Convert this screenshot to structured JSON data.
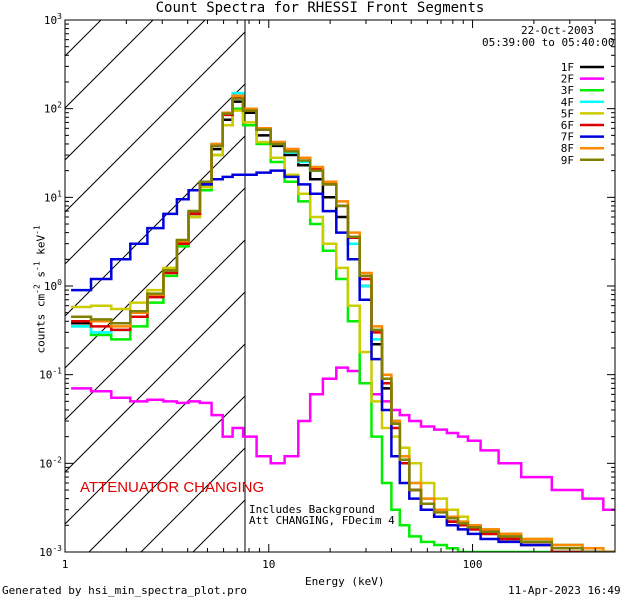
{
  "colors": {
    "1F": "#000000",
    "2F": "#ff00ff",
    "3F": "#00ee00",
    "4F": "#00ffff",
    "5F": "#cccc00",
    "6F": "#dd0000",
    "7F": "#0000dd",
    "8F": "#ff8800",
    "9F": "#808000",
    "annotation": "#dd0000",
    "axes": "#000000",
    "background": "#ffffff"
  },
  "footer": {
    "generated": "Generated by hsi_min_spectra_plot.pro",
    "timestamp": "11-Apr-2023 16:49"
  },
  "chart_data": {
    "type": "line",
    "title": "Count Spectra for RHESSI Front Segments",
    "date": "22-Oct-2003",
    "time_range": "05:39:00 to 05:40:00",
    "xlabel": "Energy (keV)",
    "ylabel_parts": {
      "base": "counts cm",
      "exp1": "-2",
      "mid1": " s",
      "exp2": "-1",
      "mid2": " keV",
      "exp3": "-1"
    },
    "xscale": "log",
    "yscale": "log",
    "xlim": [
      1,
      500
    ],
    "ylim": [
      0.001,
      1000
    ],
    "xticks": [
      {
        "value": 1,
        "label": "1"
      },
      {
        "value": 10,
        "label": "10"
      },
      {
        "value": 100,
        "label": "100"
      }
    ],
    "yticks": [
      {
        "value": 0.001,
        "base": "10",
        "exp": "-3"
      },
      {
        "value": 0.01,
        "base": "10",
        "exp": "-2"
      },
      {
        "value": 0.1,
        "base": "10",
        "exp": "-1"
      },
      {
        "value": 1,
        "base": "10",
        "exp": "0"
      },
      {
        "value": 10,
        "base": "10",
        "exp": "1"
      },
      {
        "value": 100,
        "base": "10",
        "exp": "2"
      },
      {
        "value": 1000,
        "base": "10",
        "exp": "3"
      }
    ],
    "attenuator_region": {
      "x_end": 6
    },
    "annotations": {
      "attenuator": "ATTENUATOR CHANGING",
      "background_line1": "Includes Background",
      "background_line2": "Att CHANGING, FDecim 4"
    },
    "series": [
      {
        "name": "1F",
        "color": "#000000",
        "x": [
          1.2,
          1.5,
          1.9,
          2.3,
          2.8,
          3.3,
          3.8,
          4.3,
          4.9,
          5.6,
          6.3,
          7.0,
          8.0,
          9.5,
          11,
          13,
          15,
          17,
          20,
          23,
          26,
          30,
          34,
          38,
          42,
          46,
          52,
          60,
          70,
          80,
          90,
          100,
          120,
          150,
          200,
          300,
          400,
          480
        ],
        "y": [
          0.38,
          0.4,
          0.38,
          0.5,
          0.8,
          1.5,
          3.2,
          6.5,
          14,
          35,
          75,
          120,
          90,
          50,
          38,
          30,
          23,
          16,
          10,
          6,
          3,
          1.0,
          0.22,
          0.07,
          0.03,
          0.012,
          0.005,
          0.003,
          0.0025,
          0.0022,
          0.002,
          0.0018,
          0.0016,
          0.0014,
          0.0012,
          0.001,
          0.001,
          0.001
        ]
      },
      {
        "name": "2F",
        "color": "#ff00ff",
        "x": [
          1.2,
          1.5,
          1.9,
          2.3,
          2.8,
          3.3,
          3.8,
          4.3,
          4.9,
          5.6,
          6.3,
          7.0,
          8.0,
          9.5,
          11,
          13,
          15,
          17,
          20,
          23,
          26,
          30,
          34,
          38,
          42,
          46,
          52,
          60,
          70,
          80,
          90,
          100,
          120,
          150,
          200,
          300,
          400,
          480
        ],
        "y": [
          0.07,
          0.065,
          0.055,
          0.05,
          0.052,
          0.05,
          0.048,
          0.05,
          0.048,
          0.035,
          0.02,
          0.025,
          0.02,
          0.012,
          0.01,
          0.012,
          0.03,
          0.06,
          0.09,
          0.12,
          0.11,
          0.08,
          0.06,
          0.05,
          0.04,
          0.035,
          0.03,
          0.026,
          0.024,
          0.022,
          0.02,
          0.018,
          0.014,
          0.01,
          0.007,
          0.005,
          0.004,
          0.003
        ]
      },
      {
        "name": "3F",
        "color": "#00ee00",
        "x": [
          1.2,
          1.5,
          1.9,
          2.3,
          2.8,
          3.3,
          3.8,
          4.3,
          4.9,
          5.6,
          6.3,
          7.0,
          8.0,
          9.5,
          11,
          13,
          15,
          17,
          20,
          23,
          26,
          30,
          34,
          38,
          42,
          46,
          52,
          60,
          70,
          80,
          90,
          100,
          120,
          150,
          200,
          300,
          400,
          480
        ],
        "y": [
          0.35,
          0.28,
          0.25,
          0.35,
          0.65,
          1.3,
          2.8,
          6,
          12,
          30,
          65,
          100,
          65,
          40,
          25,
          15,
          9,
          5,
          2.5,
          1.2,
          0.4,
          0.08,
          0.02,
          0.006,
          0.003,
          0.002,
          0.0015,
          0.0013,
          0.0012,
          0.0011,
          0.001,
          0.001,
          0.001,
          0.001,
          0.001,
          0.001,
          0.001,
          0.001
        ]
      },
      {
        "name": "4F",
        "color": "#00ffff",
        "x": [
          1.2,
          1.5,
          1.9,
          2.3,
          2.8,
          3.3,
          3.8,
          4.3,
          4.9,
          5.6,
          6.3,
          7.0,
          8.0,
          9.5,
          11,
          13,
          15,
          17,
          20,
          23,
          26,
          30,
          34,
          38,
          42,
          46,
          52,
          60,
          70,
          80,
          90,
          100,
          120,
          150,
          200,
          300,
          400,
          480
        ],
        "y": [
          0.35,
          0.3,
          0.32,
          0.45,
          0.75,
          1.5,
          3.1,
          7,
          15,
          40,
          90,
          150,
          100,
          60,
          40,
          32,
          25,
          20,
          14,
          8,
          3,
          1.0,
          0.25,
          0.08,
          0.03,
          0.015,
          0.006,
          0.004,
          0.003,
          0.0025,
          0.0022,
          0.002,
          0.0018,
          0.0016,
          0.0014,
          0.0012,
          0.0011,
          0.001
        ]
      },
      {
        "name": "5F",
        "color": "#cccc00",
        "x": [
          1.2,
          1.5,
          1.9,
          2.3,
          2.8,
          3.3,
          3.8,
          4.3,
          4.9,
          5.6,
          6.3,
          7.0,
          8.0,
          9.5,
          11,
          13,
          15,
          17,
          20,
          23,
          26,
          30,
          34,
          38,
          42,
          46,
          52,
          60,
          70,
          80,
          90,
          100,
          120,
          150,
          200,
          300,
          400,
          480
        ],
        "y": [
          0.58,
          0.6,
          0.55,
          0.65,
          0.9,
          1.6,
          3.0,
          6,
          13,
          30,
          65,
          95,
          70,
          42,
          28,
          18,
          11,
          6,
          3,
          1.6,
          0.6,
          0.18,
          0.05,
          0.025,
          0.02,
          0.015,
          0.01,
          0.006,
          0.004,
          0.003,
          0.0025,
          0.002,
          0.0018,
          0.0016,
          0.0014,
          0.0012,
          0.0011,
          0.001
        ]
      },
      {
        "name": "6F",
        "color": "#dd0000",
        "x": [
          1.2,
          1.5,
          1.9,
          2.3,
          2.8,
          3.3,
          3.8,
          4.3,
          4.9,
          5.6,
          6.3,
          7.0,
          8.0,
          9.5,
          11,
          13,
          15,
          17,
          20,
          23,
          26,
          30,
          34,
          38,
          42,
          46,
          52,
          60,
          70,
          80,
          90,
          100,
          120,
          150,
          200,
          300,
          400,
          480
        ],
        "y": [
          0.4,
          0.35,
          0.32,
          0.45,
          0.75,
          1.4,
          3,
          6.5,
          14,
          38,
          85,
          135,
          95,
          58,
          42,
          35,
          28,
          21,
          14,
          8,
          3.5,
          1.2,
          0.3,
          0.08,
          0.025,
          0.01,
          0.005,
          0.003,
          0.0025,
          0.0022,
          0.002,
          0.0018,
          0.0016,
          0.0014,
          0.0012,
          0.001,
          0.001,
          0.001
        ]
      },
      {
        "name": "7F",
        "color": "#0000dd",
        "x": [
          1.2,
          1.5,
          1.9,
          2.3,
          2.8,
          3.3,
          3.8,
          4.3,
          4.9,
          5.6,
          6.3,
          7.0,
          8.0,
          9.5,
          11,
          13,
          15,
          17,
          20,
          23,
          26,
          30,
          34,
          38,
          42,
          46,
          52,
          60,
          70,
          80,
          90,
          100,
          120,
          150,
          200,
          300,
          400,
          480
        ],
        "y": [
          0.9,
          1.2,
          2.0,
          3.0,
          4.5,
          6.5,
          9.5,
          12,
          14,
          16,
          17,
          18,
          18,
          19,
          20,
          17,
          14,
          11,
          7,
          4,
          2,
          0.7,
          0.15,
          0.04,
          0.012,
          0.006,
          0.004,
          0.003,
          0.0025,
          0.002,
          0.0018,
          0.0016,
          0.0014,
          0.0013,
          0.0012,
          0.0011,
          0.001,
          0.001
        ]
      },
      {
        "name": "8F",
        "color": "#ff8800",
        "x": [
          1.2,
          1.5,
          1.9,
          2.3,
          2.8,
          3.3,
          3.8,
          4.3,
          4.9,
          5.6,
          6.3,
          7.0,
          8.0,
          9.5,
          11,
          13,
          15,
          17,
          20,
          23,
          26,
          30,
          34,
          38,
          42,
          46,
          52,
          60,
          70,
          80,
          90,
          100,
          120,
          150,
          200,
          300,
          400,
          480
        ],
        "y": [
          0.45,
          0.4,
          0.35,
          0.5,
          0.8,
          1.5,
          3.2,
          7,
          15,
          40,
          90,
          140,
          100,
          60,
          42,
          35,
          28,
          22,
          15,
          9,
          4,
          1.4,
          0.35,
          0.1,
          0.03,
          0.012,
          0.006,
          0.004,
          0.003,
          0.0025,
          0.0022,
          0.002,
          0.0018,
          0.0016,
          0.0014,
          0.0012,
          0.0011,
          0.001
        ]
      },
      {
        "name": "9F",
        "color": "#808000",
        "x": [
          1.2,
          1.5,
          1.9,
          2.3,
          2.8,
          3.3,
          3.8,
          4.3,
          4.9,
          5.6,
          6.3,
          7.0,
          8.0,
          9.5,
          11,
          13,
          15,
          17,
          20,
          23,
          26,
          30,
          34,
          38,
          42,
          46,
          52,
          60,
          70,
          80,
          90,
          100,
          120,
          150,
          200,
          300,
          400,
          480
        ],
        "y": [
          0.45,
          0.42,
          0.38,
          0.52,
          0.82,
          1.5,
          3.3,
          7,
          15,
          38,
          88,
          130,
          95,
          58,
          40,
          33,
          26,
          20,
          14,
          8,
          3.6,
          1.3,
          0.32,
          0.09,
          0.028,
          0.011,
          0.005,
          0.0035,
          0.0028,
          0.0024,
          0.0021,
          0.0019,
          0.0017,
          0.0015,
          0.0013,
          0.0011,
          0.001,
          0.001
        ]
      }
    ]
  }
}
